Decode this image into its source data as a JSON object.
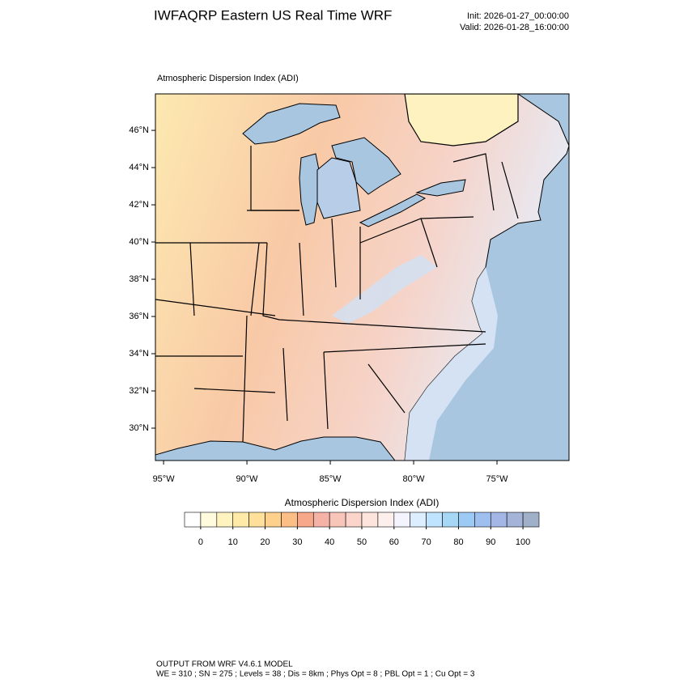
{
  "header": {
    "title": "IWFAQRP Eastern US Real Time WRF",
    "init": "Init: 2026-01-27_00:00:00",
    "valid": "Valid: 2026-01-28_16:00:00"
  },
  "map": {
    "subtitle": "Atmospheric Dispersion Index   (ADI)",
    "latlim": [
      28.26,
      47.96
    ],
    "lonlim": [
      -95.49,
      -70.68
    ],
    "lat_ticks": [
      {
        "value": 46,
        "label": "46°N"
      },
      {
        "value": 44,
        "label": "44°N"
      },
      {
        "value": 42,
        "label": "42°N"
      },
      {
        "value": 40,
        "label": "40°N"
      },
      {
        "value": 38,
        "label": "38°N"
      },
      {
        "value": 36,
        "label": "36°N"
      },
      {
        "value": 34,
        "label": "34°N"
      },
      {
        "value": 32,
        "label": "32°N"
      },
      {
        "value": 30,
        "label": "30°N"
      }
    ],
    "lon_ticks": [
      {
        "value": -95,
        "label": "95°W"
      },
      {
        "value": -90,
        "label": "90°W"
      },
      {
        "value": -85,
        "label": "85°W"
      },
      {
        "value": -80,
        "label": "80°W"
      },
      {
        "value": -75,
        "label": "75°W"
      }
    ]
  },
  "colorbar": {
    "title": "Atmospheric Dispersion Index  (ADI)",
    "lim": [
      -5,
      105
    ],
    "ticks": [
      0,
      10,
      20,
      30,
      40,
      50,
      60,
      70,
      80,
      90,
      100
    ],
    "colors": [
      "#ffffff",
      "#fffbdc",
      "#fff3c0",
      "#ffeaa8",
      "#ffe09a",
      "#fdd18c",
      "#fbbf86",
      "#f7a78a",
      "#f5b3a8",
      "#f8c5bb",
      "#fbd5cc",
      "#fde4dc",
      "#fdf0ec",
      "#f4f4ff",
      "#dceeff",
      "#bfe4ff",
      "#a6d8f5",
      "#9ccaf4",
      "#9fbfee",
      "#a3b6e6",
      "#a3b4d8",
      "#9fb0c8"
    ]
  },
  "footer": {
    "line1": "OUTPUT FROM WRF V4.6.1 MODEL",
    "line2": "WE = 310 ; SN = 275 ; Levels = 38 ; Dis = 8km ; Phys Opt = 8 ; PBL Opt = 1 ; Cu Opt = 3"
  }
}
